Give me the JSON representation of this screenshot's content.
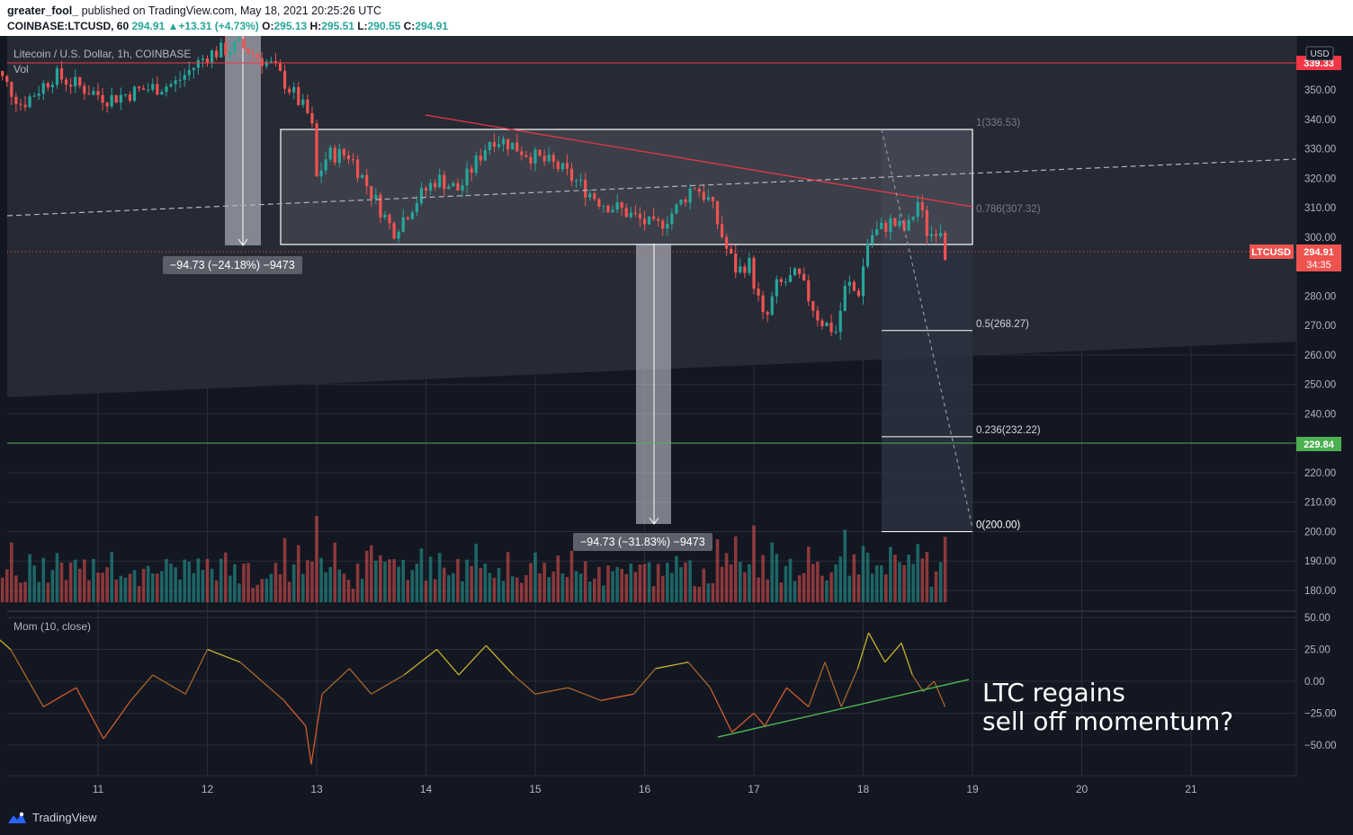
{
  "header": {
    "publisher_user": "greater_fool_",
    "publisher_rest": " published on TradingView.com, May 18, 2021 20:25:26 UTC",
    "symbol": "COINBASE:LTCUSD, 60",
    "last": "294.91",
    "change_arrow": "▲",
    "change": "+13.31 (+4.73%)",
    "o_label": "O:",
    "o": "295.13",
    "h_label": "H:",
    "h": "295.51",
    "l_label": "L:",
    "l": "290.55",
    "c_label": "C:",
    "c": "294.91"
  },
  "pane_labels": {
    "title": "Litecoin / U.S. Dollar, 1h, COINBASE",
    "vol": "Vol",
    "mom": "Mom (10, close)",
    "currency": "USD"
  },
  "price_badges": {
    "top_line": "339.33",
    "symbol": "LTCUSD",
    "current": "294.91",
    "countdown": "34:35",
    "green_line": "229.84"
  },
  "fib_labels": [
    "1(336.53)",
    "0.786(307.32)",
    "0.5(268.27)",
    "0.236(232.22)",
    "0(200.00)"
  ],
  "measurements": [
    "−94.73 (−24.18%) −9473",
    "−94.73 (−31.83%) −9473"
  ],
  "note": {
    "line1": "LTC regains",
    "line2": "sell off momentum?"
  },
  "footer": {
    "brand": "TradingView"
  },
  "colors": {
    "bg": "#131722",
    "up": "#26a69a",
    "down": "#ef5350",
    "grid": "#2a2e39",
    "text": "#b2b5be",
    "red_line": "#f23645",
    "green_line": "#4caf50"
  },
  "chart_data": [
    {
      "type": "candlestick",
      "title": "Litecoin / U.S. Dollar, 1h, COINBASE",
      "x_ticks": [
        "11",
        "12",
        "13",
        "14",
        "15",
        "16",
        "17",
        "18",
        "19",
        "20",
        "21"
      ],
      "y_ticks": [
        180,
        190,
        200,
        210,
        220,
        230,
        240,
        250,
        260,
        270,
        280,
        290,
        300,
        310,
        320,
        330,
        340,
        350
      ],
      "ylim": [
        176,
        356
      ],
      "price_path": [
        [
          10.0,
          360
        ],
        [
          10.3,
          345
        ],
        [
          10.6,
          355
        ],
        [
          10.9,
          350
        ],
        [
          11.1,
          347
        ],
        [
          11.4,
          350
        ],
        [
          11.7,
          352
        ],
        [
          12.0,
          362
        ],
        [
          12.3,
          365
        ],
        [
          12.6,
          358
        ],
        [
          12.8,
          348
        ],
        [
          12.95,
          340
        ],
        [
          13.0,
          320
        ],
        [
          13.1,
          328
        ],
        [
          13.3,
          328
        ],
        [
          13.5,
          315
        ],
        [
          13.7,
          302
        ],
        [
          13.9,
          312
        ],
        [
          14.1,
          320
        ],
        [
          14.3,
          316
        ],
        [
          14.5,
          328
        ],
        [
          14.6,
          334
        ],
        [
          14.75,
          332
        ],
        [
          15.0,
          327
        ],
        [
          15.2,
          324
        ],
        [
          15.4,
          318
        ],
        [
          15.6,
          312
        ],
        [
          15.8,
          309
        ],
        [
          16.0,
          305
        ],
        [
          16.1,
          303
        ],
        [
          16.3,
          310
        ],
        [
          16.45,
          318
        ],
        [
          16.6,
          312
        ],
        [
          16.75,
          296
        ],
        [
          16.85,
          288
        ],
        [
          16.95,
          292
        ],
        [
          17.1,
          270
        ],
        [
          17.2,
          283
        ],
        [
          17.4,
          287
        ],
        [
          17.6,
          272
        ],
        [
          17.75,
          268
        ],
        [
          17.85,
          285
        ],
        [
          17.95,
          280
        ],
        [
          18.05,
          300
        ],
        [
          18.25,
          305
        ],
        [
          18.4,
          302
        ],
        [
          18.5,
          312
        ],
        [
          18.6,
          300
        ],
        [
          18.7,
          305
        ],
        [
          18.75,
          294.9
        ]
      ],
      "volume_range": [
        0,
        1
      ]
    },
    {
      "type": "line",
      "title": "Mom (10, close)",
      "y_ticks": [
        50,
        25,
        0,
        -25,
        -50
      ],
      "ylim": [
        -68,
        50
      ],
      "points": [
        [
          10.0,
          40
        ],
        [
          10.2,
          25
        ],
        [
          10.5,
          -20
        ],
        [
          10.8,
          -5
        ],
        [
          11.05,
          -45
        ],
        [
          11.3,
          -15
        ],
        [
          11.5,
          5
        ],
        [
          11.8,
          -10
        ],
        [
          12.0,
          25
        ],
        [
          12.3,
          15
        ],
        [
          12.5,
          0
        ],
        [
          12.7,
          -15
        ],
        [
          12.9,
          -35
        ],
        [
          12.95,
          -65
        ],
        [
          13.05,
          -10
        ],
        [
          13.3,
          10
        ],
        [
          13.5,
          -10
        ],
        [
          13.8,
          5
        ],
        [
          14.1,
          25
        ],
        [
          14.3,
          5
        ],
        [
          14.55,
          28
        ],
        [
          14.8,
          5
        ],
        [
          15.0,
          -10
        ],
        [
          15.3,
          -5
        ],
        [
          15.6,
          -15
        ],
        [
          15.9,
          -10
        ],
        [
          16.1,
          10
        ],
        [
          16.4,
          15
        ],
        [
          16.6,
          -5
        ],
        [
          16.8,
          -40
        ],
        [
          17.0,
          -25
        ],
        [
          17.1,
          -35
        ],
        [
          17.3,
          -5
        ],
        [
          17.5,
          -20
        ],
        [
          17.65,
          15
        ],
        [
          17.8,
          -20
        ],
        [
          17.95,
          10
        ],
        [
          18.05,
          38
        ],
        [
          18.2,
          15
        ],
        [
          18.35,
          30
        ],
        [
          18.45,
          5
        ],
        [
          18.55,
          -8
        ],
        [
          18.65,
          0
        ],
        [
          18.75,
          -20
        ]
      ]
    }
  ]
}
